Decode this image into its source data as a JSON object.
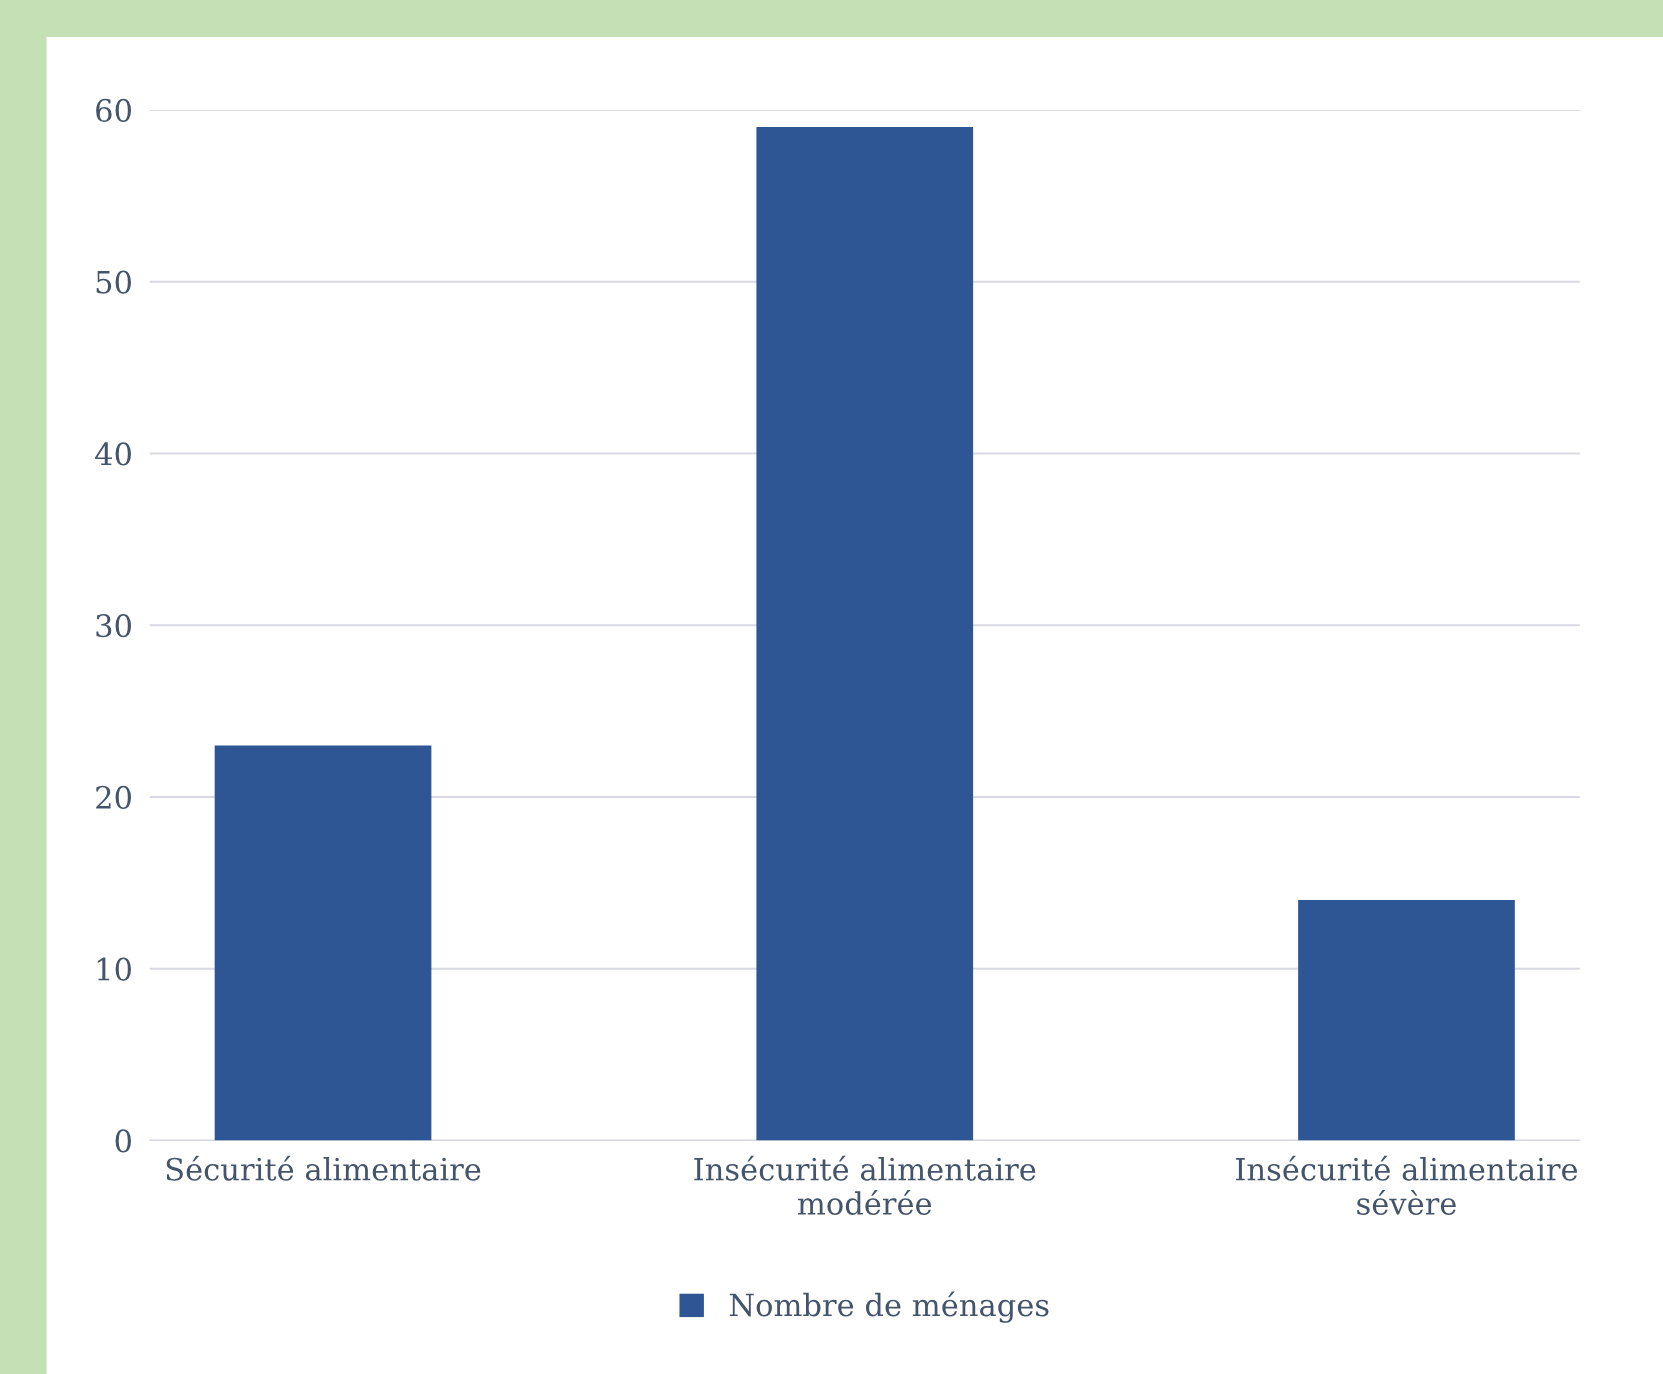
{
  "chart_data": {
    "type": "bar",
    "categories": [
      "Sécurité alimentaire",
      "Insécurité alimentaire\nmodérée",
      "Insécurité alimentaire\nsévère"
    ],
    "series": [
      {
        "name": "Nombre de ménages",
        "color": "#2e5594",
        "values": [
          23,
          59,
          14
        ]
      }
    ],
    "ylim": [
      0,
      60
    ],
    "yticks": [
      0,
      10,
      20,
      30,
      40,
      50,
      60
    ],
    "grid": "y",
    "legend": "bottom"
  }
}
